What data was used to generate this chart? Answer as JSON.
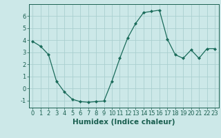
{
  "x": [
    0,
    1,
    2,
    3,
    4,
    5,
    6,
    7,
    8,
    9,
    10,
    11,
    12,
    13,
    14,
    15,
    16,
    17,
    18,
    19,
    20,
    21,
    22,
    23
  ],
  "y": [
    3.9,
    3.5,
    2.8,
    0.6,
    -0.3,
    -0.9,
    -1.1,
    -1.15,
    -1.1,
    -1.05,
    0.6,
    2.5,
    4.2,
    5.4,
    6.3,
    6.4,
    6.5,
    4.1,
    2.8,
    2.5,
    3.2,
    2.5,
    3.3,
    3.3
  ],
  "line_color": "#1a6b5a",
  "marker": "D",
  "marker_size": 2.0,
  "bg_color": "#cce8e8",
  "grid_color": "#aacfcf",
  "xlabel": "Humidex (Indice chaleur)",
  "xlim": [
    -0.5,
    23.5
  ],
  "ylim": [
    -1.6,
    7.0
  ],
  "yticks": [
    -1,
    0,
    1,
    2,
    3,
    4,
    5,
    6
  ],
  "xticks": [
    0,
    1,
    2,
    3,
    4,
    5,
    6,
    7,
    8,
    9,
    10,
    11,
    12,
    13,
    14,
    15,
    16,
    17,
    18,
    19,
    20,
    21,
    22,
    23
  ],
  "tick_color": "#1a5f50",
  "axis_color": "#1a5f50",
  "xlabel_fontsize": 7.5,
  "tick_fontsize": 6.0,
  "linewidth": 0.9
}
